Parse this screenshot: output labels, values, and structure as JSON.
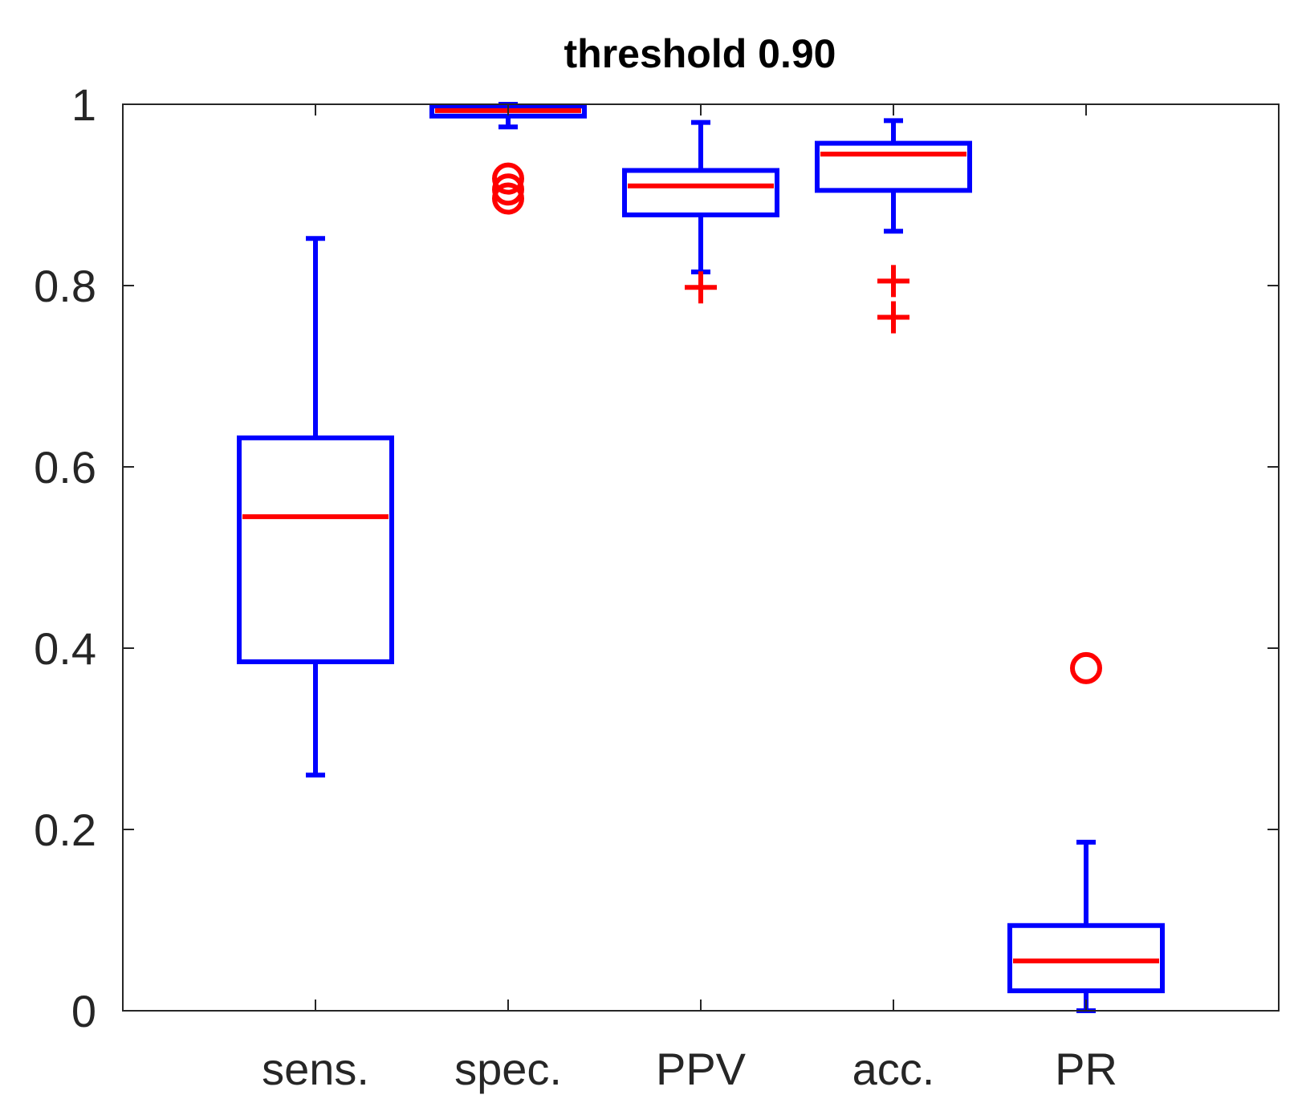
{
  "chart_data": {
    "type": "boxplot",
    "title": "threshold 0.90",
    "xlabel": "",
    "ylabel": "",
    "ylim": [
      0,
      1
    ],
    "yticks": [
      "0",
      "0.2",
      "0.4",
      "0.6",
      "0.8",
      "1"
    ],
    "ytick_values": [
      0,
      0.2,
      0.4,
      0.6,
      0.8,
      1
    ],
    "categories": [
      "sens.",
      "spec.",
      "PPV",
      "acc.",
      "PR"
    ],
    "grid": false,
    "colors": {
      "box": "#0000ff",
      "median": "#ff0000",
      "outlier": "#ff0000",
      "axis": "#262626"
    },
    "boxes": [
      {
        "category": "sens.",
        "whisker_low": 0.26,
        "q1": 0.385,
        "median": 0.545,
        "q3": 0.632,
        "whisker_high": 0.852,
        "outliers": []
      },
      {
        "category": "spec.",
        "whisker_low": 0.975,
        "q1": 0.987,
        "median": 0.993,
        "q3": 0.998,
        "whisker_high": 1.0,
        "outliers": [
          {
            "value": 0.918,
            "marker": "o"
          },
          {
            "value": 0.906,
            "marker": "o"
          },
          {
            "value": 0.896,
            "marker": "o"
          }
        ]
      },
      {
        "category": "PPV",
        "whisker_low": 0.815,
        "q1": 0.878,
        "median": 0.91,
        "q3": 0.927,
        "whisker_high": 0.98,
        "outliers": [
          {
            "value": 0.798,
            "marker": "+"
          }
        ]
      },
      {
        "category": "acc.",
        "whisker_low": 0.86,
        "q1": 0.905,
        "median": 0.945,
        "q3": 0.957,
        "whisker_high": 0.982,
        "outliers": [
          {
            "value": 0.805,
            "marker": "+"
          },
          {
            "value": 0.765,
            "marker": "+"
          }
        ]
      },
      {
        "category": "PR",
        "whisker_low": 0.0,
        "q1": 0.022,
        "median": 0.055,
        "q3": 0.094,
        "whisker_high": 0.186,
        "outliers": [
          {
            "value": 0.378,
            "marker": "o"
          }
        ]
      }
    ]
  }
}
